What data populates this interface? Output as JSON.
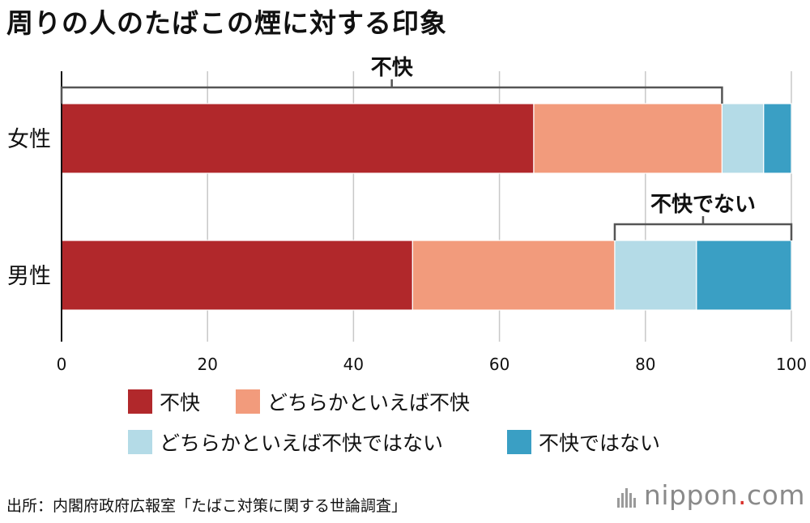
{
  "title": "周りの人のたばこの煙に対する印象",
  "chart_data": {
    "type": "bar",
    "orientation": "horizontal",
    "stacked": true,
    "categories": [
      "女性",
      "男性"
    ],
    "series": [
      {
        "name": "不快",
        "values": [
          64.7,
          48.1
        ],
        "color": "#b1282b"
      },
      {
        "name": "どちらかといえば不快",
        "values": [
          25.8,
          27.7
        ],
        "color": "#f29b7c"
      },
      {
        "name": "どちらかといえば不快ではない",
        "values": [
          5.7,
          11.2
        ],
        "color": "#b4dbe7"
      },
      {
        "name": "不快ではない",
        "values": [
          3.8,
          13.0
        ],
        "color": "#3a9fc4"
      }
    ],
    "xlim": [
      0,
      100
    ],
    "xticks": [
      "0",
      "20",
      "40",
      "60",
      "80",
      "100"
    ],
    "x_unit": "(%)",
    "grid": true,
    "legend_position": "bottom",
    "annotations": [
      {
        "label": "不快",
        "category": "女性",
        "series": [
          "不快",
          "どちらかといえば不快"
        ]
      },
      {
        "label": "不快でない",
        "category": "男性",
        "series": [
          "どちらかといえば不快ではない",
          "不快ではない"
        ]
      }
    ]
  },
  "source": "出所：内閣府政府広報室「たばこ対策に関する世論調査」",
  "brand": {
    "name": "nippon",
    "dot": ".",
    "suffix": "com"
  }
}
